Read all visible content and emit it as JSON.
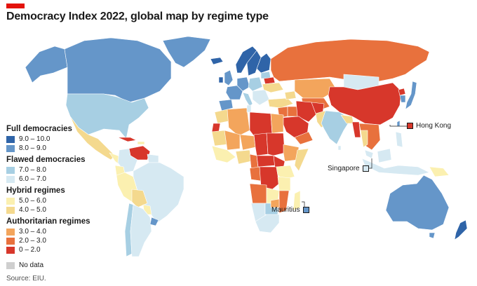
{
  "title": "Democracy Index 2022, global map by regime type",
  "source": "Source: EIU.",
  "colors": {
    "accent": "#e3120b",
    "ocean": "#ffffff",
    "c9_10": "#2f64a8",
    "c8_9": "#6596c9",
    "c7_8": "#a7cfe3",
    "c6_7": "#d6e9f2",
    "c5_6": "#fbf0b0",
    "c4_5": "#f4d98e",
    "c3_4": "#f3a55c",
    "c2_3": "#e8713d",
    "c0_2": "#d7372b",
    "nodata": "#cfcfcf"
  },
  "legend": {
    "groups": [
      {
        "title": "Full democracies",
        "items": [
          {
            "label": "9.0 – 10.0",
            "color": "#2f64a8"
          },
          {
            "label": "8.0 – 9.0",
            "color": "#6596c9"
          }
        ]
      },
      {
        "title": "Flawed democracies",
        "items": [
          {
            "label": "7.0 – 8.0",
            "color": "#a7cfe3"
          },
          {
            "label": "6.0 – 7.0",
            "color": "#d6e9f2"
          }
        ]
      },
      {
        "title": "Hybrid regimes",
        "items": [
          {
            "label": "5.0 – 6.0",
            "color": "#fbf0b0"
          },
          {
            "label": "4.0 – 5.0",
            "color": "#f4d98e"
          }
        ]
      },
      {
        "title": "Authoritarian regimes",
        "items": [
          {
            "label": "3.0 – 4.0",
            "color": "#f3a55c"
          },
          {
            "label": "2.0 – 3.0",
            "color": "#e8713d"
          },
          {
            "label": "0 – 2.0",
            "color": "#d7372b"
          }
        ]
      }
    ],
    "no_data": {
      "label": "No data",
      "color": "#cfcfcf"
    }
  },
  "callouts": {
    "hong_kong": "Hong Kong",
    "singapore": "Singapore",
    "mauritius": "Mauritius"
  }
}
